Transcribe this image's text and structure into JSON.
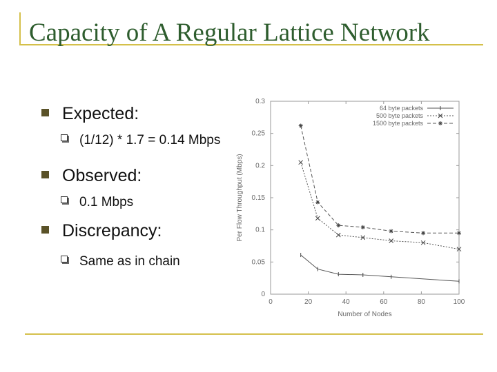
{
  "slide": {
    "title": "Capacity of A Regular Lattice Network",
    "bullets": [
      {
        "label": "Expected:",
        "subs": [
          "(1/12) * 1.7 = 0.14 Mbps"
        ]
      },
      {
        "label": "Observed:",
        "subs": [
          "0.1 Mbps"
        ]
      },
      {
        "label": "Discrepancy:",
        "subs": [
          "Same as in chain"
        ]
      }
    ],
    "accent_color": "#d4c04a",
    "title_color": "#2e5d2e",
    "bullet_color": "#5a5228"
  },
  "chart_data": {
    "type": "line",
    "xlabel": "Number of Nodes",
    "ylabel": "Per Flow Throughput (Mbps)",
    "xlim": [
      0,
      100
    ],
    "ylim": [
      0,
      0.3
    ],
    "xticks": [
      "0",
      "20",
      "40",
      "60",
      "80",
      "100"
    ],
    "yticks": [
      "0",
      "0.05",
      "0.1",
      "0.15",
      "0.2",
      "0.25",
      "0.3"
    ],
    "legend_position": "top-right",
    "grid": false,
    "series": [
      {
        "name": "64 byte packets",
        "marker": "none",
        "dash": "",
        "x": [
          16,
          25,
          36,
          49,
          64,
          100
        ],
        "y": [
          0.061,
          0.039,
          0.031,
          0.03,
          0.027,
          0.02
        ]
      },
      {
        "name": "500 byte packets",
        "marker": "x",
        "dash": "2,2",
        "x": [
          16,
          25,
          36,
          49,
          64,
          81,
          100
        ],
        "y": [
          0.205,
          0.118,
          0.092,
          0.088,
          0.083,
          0.08,
          0.07
        ]
      },
      {
        "name": "1500 byte packets",
        "marker": "star",
        "dash": "5,3",
        "x": [
          16,
          25,
          36,
          49,
          64,
          81,
          100
        ],
        "y": [
          0.262,
          0.143,
          0.107,
          0.104,
          0.098,
          0.095,
          0.095
        ]
      }
    ]
  }
}
